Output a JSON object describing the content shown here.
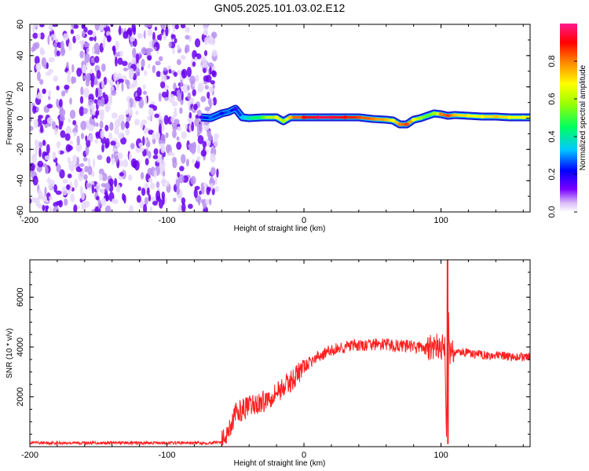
{
  "title": "GN05.2025.101.03.02.E12",
  "chart_data": [
    {
      "type": "heatmap",
      "title": "GN05.2025.101.03.02.E12",
      "xlabel": "Height of straight line (km)",
      "ylabel": "Frequency (Hz)",
      "xlim": [
        -200,
        165
      ],
      "ylim": [
        -60,
        60
      ],
      "x_ticks": [
        -200,
        -100,
        0,
        100
      ],
      "y_ticks": [
        -60,
        -40,
        -20,
        0,
        20,
        40,
        60
      ],
      "colorbar": {
        "label": "Normalized spectral amplitude",
        "range": [
          0,
          1
        ],
        "ticks": [
          0.0,
          0.2,
          0.4,
          0.6,
          0.8
        ],
        "colormap": [
          "#ffffff",
          "#d8b8f8",
          "#7a00ff",
          "#0000ff",
          "#00c8ff",
          "#00ff60",
          "#a0ff00",
          "#ffff00",
          "#ff8000",
          "#ff0000",
          "#ff1a8c"
        ]
      },
      "noise_region": {
        "x_range": [
          -200,
          -63
        ],
        "freq_range": [
          -60,
          60
        ],
        "amplitude": "0.0-0.08"
      },
      "ridge": [
        {
          "x": -75,
          "freq": 0.5,
          "amp": 0.25
        },
        {
          "x": -68,
          "freq": 0.0,
          "amp": 0.35
        },
        {
          "x": -60,
          "freq": 3.0,
          "amp": 0.3
        },
        {
          "x": -55,
          "freq": 4.0,
          "amp": 0.35
        },
        {
          "x": -50,
          "freq": 6.0,
          "amp": 0.25
        },
        {
          "x": -45,
          "freq": 0.5,
          "amp": 0.4
        },
        {
          "x": -40,
          "freq": 0.0,
          "amp": 0.45
        },
        {
          "x": -30,
          "freq": 0.5,
          "amp": 0.55
        },
        {
          "x": -20,
          "freq": 0.5,
          "amp": 0.7
        },
        {
          "x": -15,
          "freq": -2.0,
          "amp": 0.6
        },
        {
          "x": -10,
          "freq": 0.5,
          "amp": 0.75
        },
        {
          "x": 0,
          "freq": 0.5,
          "amp": 0.9
        },
        {
          "x": 10,
          "freq": 0.5,
          "amp": 0.95
        },
        {
          "x": 20,
          "freq": 0.5,
          "amp": 0.95
        },
        {
          "x": 30,
          "freq": 0.5,
          "amp": 0.9
        },
        {
          "x": 40,
          "freq": 0.5,
          "amp": 0.85
        },
        {
          "x": 50,
          "freq": -0.5,
          "amp": 0.8
        },
        {
          "x": 60,
          "freq": -1.0,
          "amp": 0.75
        },
        {
          "x": 65,
          "freq": -1.5,
          "amp": 0.7
        },
        {
          "x": 70,
          "freq": -4.0,
          "amp": 0.8
        },
        {
          "x": 75,
          "freq": -4.0,
          "amp": 0.85
        },
        {
          "x": 80,
          "freq": -1.0,
          "amp": 0.7
        },
        {
          "x": 85,
          "freq": 0.0,
          "amp": 0.6
        },
        {
          "x": 90,
          "freq": 1.5,
          "amp": 0.55
        },
        {
          "x": 95,
          "freq": 3.0,
          "amp": 0.6
        },
        {
          "x": 100,
          "freq": 2.5,
          "amp": 0.8
        },
        {
          "x": 105,
          "freq": 1.5,
          "amp": 0.85
        },
        {
          "x": 110,
          "freq": 2.0,
          "amp": 0.75
        },
        {
          "x": 120,
          "freq": 1.5,
          "amp": 0.7
        },
        {
          "x": 130,
          "freq": 1.0,
          "amp": 0.7
        },
        {
          "x": 140,
          "freq": 1.0,
          "amp": 0.75
        },
        {
          "x": 150,
          "freq": 0.5,
          "amp": 0.7
        },
        {
          "x": 160,
          "freq": 0.5,
          "amp": 0.7
        },
        {
          "x": 165,
          "freq": 0.5,
          "amp": 0.7
        }
      ]
    },
    {
      "type": "line",
      "xlabel": "Height of straight line (km)",
      "ylabel": "SNR (10 * v/v)",
      "xlim": [
        -200,
        165
      ],
      "ylim": [
        0,
        7500
      ],
      "x_ticks": [
        -200,
        -100,
        0,
        100
      ],
      "y_ticks": [
        2000,
        4000,
        6000
      ],
      "color": "#ff2020",
      "series": [
        {
          "x": [
            -200,
            -190,
            -180,
            -170,
            -160,
            -150,
            -140,
            -130,
            -120,
            -110,
            -100,
            -90,
            -80,
            -70,
            -60,
            -55,
            -50,
            -45,
            -40,
            -35,
            -30,
            -25,
            -20,
            -15,
            -10,
            -5,
            0,
            5,
            10,
            15,
            20,
            25,
            30,
            35,
            40,
            45,
            50,
            55,
            60,
            65,
            70,
            75,
            80,
            85,
            90,
            95,
            100,
            103,
            104,
            105,
            106,
            107,
            110,
            115,
            120,
            125,
            130,
            135,
            140,
            145,
            150,
            155,
            160,
            165
          ],
          "values": [
            150,
            150,
            150,
            150,
            150,
            150,
            150,
            150,
            150,
            150,
            150,
            150,
            150,
            150,
            200,
            700,
            1300,
            1500,
            1600,
            1700,
            1800,
            2000,
            2200,
            2400,
            2600,
            2900,
            3200,
            3400,
            3600,
            3750,
            3850,
            3950,
            4000,
            4050,
            4050,
            4050,
            4100,
            4100,
            4100,
            4050,
            4050,
            4050,
            4000,
            4000,
            3900,
            4000,
            4000,
            3900,
            100,
            7500,
            3900,
            3800,
            3800,
            3800,
            3750,
            3700,
            3700,
            3650,
            3650,
            3650,
            3600,
            3600,
            3600,
            3600
          ]
        }
      ]
    }
  ]
}
